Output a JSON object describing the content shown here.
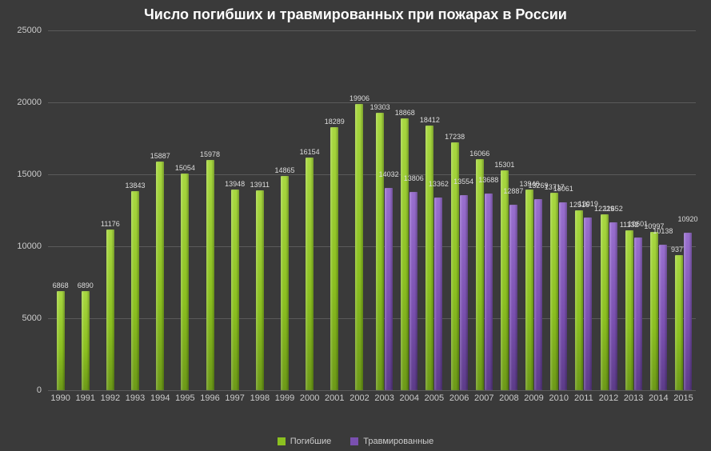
{
  "chart": {
    "title": "Число погибших и травмированных при пожарах в России",
    "title_fontsize": 18,
    "title_color": "#ffffff",
    "background_color": "#3a3a3a",
    "grid_color": "#5a5a5a",
    "ylim": [
      0,
      25000
    ],
    "ytick_step": 5000,
    "yticks": [
      0,
      5000,
      10000,
      15000,
      20000,
      25000
    ],
    "label_color": "#cccccc",
    "label_fontsize": 11,
    "value_fontsize": 9,
    "series": [
      {
        "name": "Погибшие",
        "color": "#8bc020"
      },
      {
        "name": "Травмированные",
        "color": "#7a50b0"
      }
    ],
    "categories": [
      "1990",
      "1991",
      "1992",
      "1993",
      "1994",
      "1995",
      "1996",
      "1997",
      "1998",
      "1999",
      "2000",
      "2001",
      "2002",
      "2003",
      "2004",
      "2005",
      "2006",
      "2007",
      "2008",
      "2009",
      "2010",
      "2011",
      "2012",
      "2013",
      "2014",
      "2015"
    ],
    "data": [
      {
        "year": "1990",
        "deaths": 6868,
        "injured": null
      },
      {
        "year": "1991",
        "deaths": 6890,
        "injured": null
      },
      {
        "year": "1992",
        "deaths": 11176,
        "injured": null
      },
      {
        "year": "1993",
        "deaths": 13843,
        "injured": null
      },
      {
        "year": "1994",
        "deaths": 15887,
        "injured": null
      },
      {
        "year": "1995",
        "deaths": 15054,
        "injured": null
      },
      {
        "year": "1996",
        "deaths": 15978,
        "injured": null
      },
      {
        "year": "1997",
        "deaths": 13948,
        "injured": null
      },
      {
        "year": "1998",
        "deaths": 13911,
        "injured": null
      },
      {
        "year": "1999",
        "deaths": 14865,
        "injured": null
      },
      {
        "year": "2000",
        "deaths": 16154,
        "injured": null
      },
      {
        "year": "2001",
        "deaths": 18289,
        "injured": null
      },
      {
        "year": "2002",
        "deaths": 19906,
        "injured": null
      },
      {
        "year": "2003",
        "deaths": 19303,
        "injured": 14032
      },
      {
        "year": "2004",
        "deaths": 18868,
        "injured": 13806
      },
      {
        "year": "2005",
        "deaths": 18412,
        "injured": 13362
      },
      {
        "year": "2006",
        "deaths": 17238,
        "injured": 13554
      },
      {
        "year": "2007",
        "deaths": 16066,
        "injured": 13688
      },
      {
        "year": "2008",
        "deaths": 15301,
        "injured": 12887
      },
      {
        "year": "2009",
        "deaths": 13946,
        "injured": 13269
      },
      {
        "year": "2010",
        "deaths": 13717,
        "injured": 13061
      },
      {
        "year": "2011",
        "deaths": 12516,
        "injured": 12019
      },
      {
        "year": "2012",
        "deaths": 12229,
        "injured": 11652
      },
      {
        "year": "2013",
        "deaths": 11132,
        "injured": 10601
      },
      {
        "year": "2014",
        "deaths": 10997,
        "injured": 10138
      },
      {
        "year": "2015",
        "deaths": 9377,
        "injured": 10920
      }
    ],
    "legend_labels": {
      "deaths": "Погибшие",
      "injured": "Травмированные"
    }
  }
}
